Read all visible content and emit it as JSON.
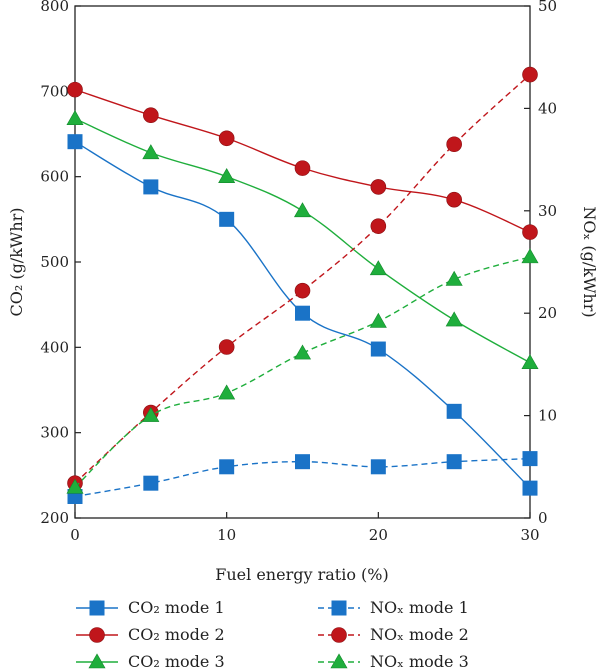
{
  "chart_data": {
    "type": "line",
    "xlabel": "Fuel energy ratio (%)",
    "ylabel_left": "CO₂ (g/kWhr)",
    "ylabel_right": "NOₓ (g/kWhr)",
    "x": [
      0,
      5,
      10,
      15,
      20,
      25,
      30
    ],
    "xlim": [
      0,
      30
    ],
    "xticks": [
      0,
      10,
      20,
      30
    ],
    "ylim_left": [
      200,
      800
    ],
    "yticks_left": [
      200,
      300,
      400,
      500,
      600,
      700,
      800
    ],
    "ylim_right": [
      0,
      50
    ],
    "yticks_right": [
      0,
      10,
      20,
      30,
      40,
      50
    ],
    "legend_position": "bottom",
    "series": [
      {
        "name": "CO₂ mode 1",
        "axis": "left",
        "style": "solid",
        "marker": "square",
        "color": "#1a73c7",
        "values": [
          641,
          588,
          550,
          440,
          398,
          325,
          235
        ]
      },
      {
        "name": "CO₂ mode 2",
        "axis": "left",
        "style": "solid",
        "marker": "circle",
        "color": "#c0161b",
        "values": [
          702,
          672,
          645,
          610,
          588,
          573,
          535
        ]
      },
      {
        "name": "CO₂ mode 3",
        "axis": "left",
        "style": "solid",
        "marker": "triangle",
        "color": "#1fae3c",
        "values": [
          668,
          628,
          600,
          560,
          492,
          432,
          382
        ]
      },
      {
        "name": "NOₓ mode 1",
        "axis": "right",
        "style": "dashed",
        "marker": "square",
        "color": "#1a73c7",
        "values": [
          2.1,
          3.4,
          5.0,
          5.5,
          5.0,
          5.5,
          5.8
        ]
      },
      {
        "name": "NOₓ mode 2",
        "axis": "right",
        "style": "dashed",
        "marker": "circle",
        "color": "#c0161b",
        "values": [
          3.4,
          10.3,
          16.7,
          22.2,
          28.5,
          36.5,
          43.3
        ]
      },
      {
        "name": "NOₓ mode 3",
        "axis": "right",
        "style": "dashed",
        "marker": "triangle",
        "color": "#1fae3c",
        "values": [
          3.0,
          10.0,
          12.2,
          16.1,
          19.2,
          23.3,
          25.5
        ]
      }
    ]
  }
}
